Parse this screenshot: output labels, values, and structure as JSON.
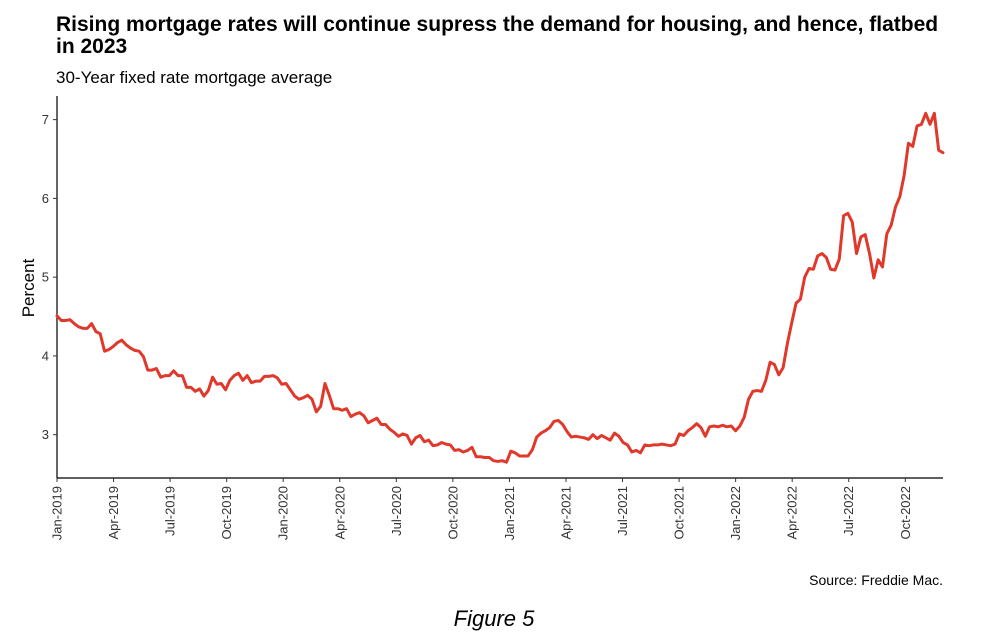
{
  "chart_data": {
    "type": "line",
    "title": "Rising mortgage rates will continue supress the demand for housing, and hence, flatbed in 2023",
    "subtitle": "30-Year fixed rate mortgage average",
    "ylabel": "Percent",
    "xlabel": "",
    "ylim": [
      2.45,
      7.3
    ],
    "yticks": [
      3,
      4,
      5,
      6,
      7
    ],
    "x_start": "2019-01",
    "x_end": "2022-12",
    "xticks": [
      "Jan-2019",
      "Apr-2019",
      "Jul-2019",
      "Oct-2019",
      "Jan-2020",
      "Apr-2020",
      "Jul-2020",
      "Oct-2020",
      "Jan-2021",
      "Apr-2021",
      "Jul-2021",
      "Oct-2021",
      "Jan-2022",
      "Apr-2022",
      "Jul-2022",
      "Oct-2022"
    ],
    "grid": false,
    "line_color": "#e0392b",
    "series": [
      {
        "values": [
          4.51,
          4.45,
          4.45,
          4.46,
          4.41,
          4.37,
          4.35,
          4.35,
          4.41,
          4.31,
          4.28,
          4.06,
          4.08,
          4.12,
          4.17,
          4.2,
          4.14,
          4.1,
          4.07,
          4.06,
          3.99,
          3.82,
          3.82,
          3.84,
          3.73,
          3.75,
          3.75,
          3.81,
          3.75,
          3.75,
          3.6,
          3.6,
          3.55,
          3.58,
          3.49,
          3.56,
          3.73,
          3.64,
          3.65,
          3.57,
          3.69,
          3.75,
          3.78,
          3.69,
          3.75,
          3.66,
          3.68,
          3.68,
          3.74,
          3.74,
          3.75,
          3.72,
          3.64,
          3.65,
          3.57,
          3.49,
          3.45,
          3.47,
          3.5,
          3.45,
          3.29,
          3.36,
          3.65,
          3.5,
          3.33,
          3.33,
          3.31,
          3.33,
          3.23,
          3.26,
          3.28,
          3.24,
          3.15,
          3.18,
          3.21,
          3.13,
          3.13,
          3.07,
          3.03,
          2.98,
          3.01,
          2.99,
          2.88,
          2.96,
          2.99,
          2.91,
          2.93,
          2.86,
          2.87,
          2.9,
          2.88,
          2.87,
          2.8,
          2.81,
          2.78,
          2.8,
          2.84,
          2.72,
          2.72,
          2.71,
          2.71,
          2.67,
          2.66,
          2.67,
          2.65,
          2.79,
          2.77,
          2.73,
          2.73,
          2.73,
          2.81,
          2.97,
          3.02,
          3.05,
          3.09,
          3.17,
          3.18,
          3.13,
          3.04,
          2.97,
          2.98,
          2.97,
          2.96,
          2.94,
          3.0,
          2.95,
          2.99,
          2.96,
          2.93,
          3.02,
          2.98,
          2.9,
          2.87,
          2.78,
          2.8,
          2.77,
          2.87,
          2.86,
          2.87,
          2.87,
          2.88,
          2.87,
          2.86,
          2.88,
          3.01,
          2.99,
          3.05,
          3.09,
          3.14,
          3.09,
          2.98,
          3.1,
          3.11,
          3.1,
          3.12,
          3.1,
          3.11,
          3.05,
          3.11,
          3.22,
          3.45,
          3.55,
          3.56,
          3.55,
          3.69,
          3.92,
          3.89,
          3.76,
          3.85,
          4.16,
          4.42,
          4.67,
          4.72,
          5.0,
          5.11,
          5.1,
          5.27,
          5.3,
          5.25,
          5.1,
          5.09,
          5.23,
          5.78,
          5.81,
          5.7,
          5.3,
          5.51,
          5.54,
          5.3,
          4.99,
          5.22,
          5.13,
          5.55,
          5.66,
          5.89,
          6.02,
          6.29,
          6.7,
          6.66,
          6.92,
          6.94,
          7.08,
          6.94,
          7.08,
          6.61,
          6.58
        ]
      }
    ]
  },
  "source": "Source: Freddie Mac.",
  "caption": "Figure 5"
}
